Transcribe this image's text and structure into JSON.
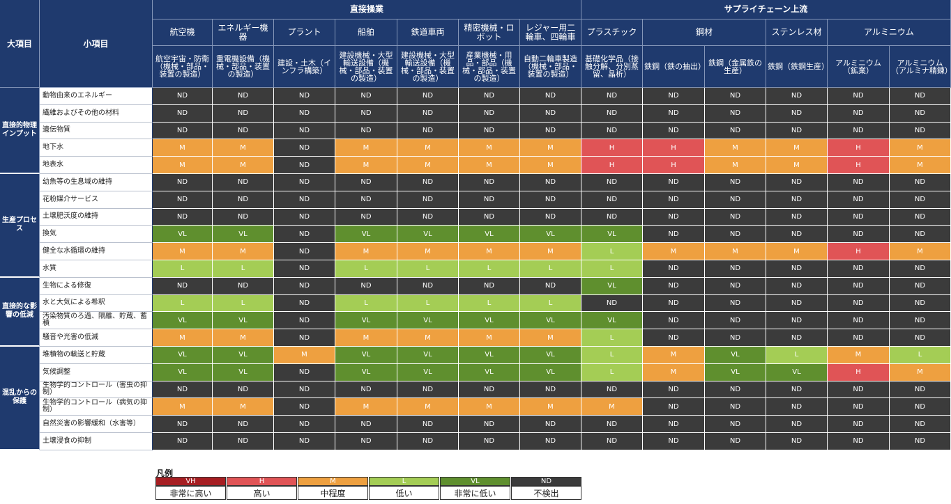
{
  "header": {
    "major_label": "大項目",
    "minor_label": "小項目",
    "groups": [
      "直接操業",
      "サプライチェーン上流"
    ]
  },
  "sectors": [
    "航空機",
    "エネルギー機器",
    "プラント",
    "船舶",
    "鉄道車両",
    "精密機械・ロボット",
    "レジャー用二輪車、四輪車",
    "プラスチック",
    "鋼材",
    "ステンレス材",
    "アルミニウム"
  ],
  "subsectors": [
    "航空宇宙・防衛（機械・部品・装置の製造）",
    "重電機設備（機械・部品・装置の製造）",
    "建設・土木（インフラ構築）",
    "建設機械・大型輸送設備（機械・部品・装置の製造）",
    "建設機械・大型輸送設備（機械・部品・装置の製造）",
    "産業機械・用品・部品（機械・部品・装置の製造）",
    "自動二輪車製造（機械・部品・装置の製造）",
    "基礎化学品（接触分解、分別蒸留、晶析）",
    "鉄鋼（鉄の抽出）",
    "鉄鋼（金属鉄の生産）",
    "鉄鋼（鉄鋼生産）",
    "アルミニウム（鉱業）",
    "アルミニウム（アルミナ精錬）"
  ],
  "categories": [
    {
      "label": "直接的物理インプット",
      "rows": 5
    },
    {
      "label": "生産プロセス",
      "rows": 6
    },
    {
      "label": "直接的な影響の低減",
      "rows": 4
    },
    {
      "label": "混乱からの保護",
      "rows": 6
    }
  ],
  "rows": [
    {
      "label": "動物由来のエネルギー",
      "values": [
        "ND",
        "ND",
        "ND",
        "ND",
        "ND",
        "ND",
        "ND",
        "ND",
        "ND",
        "ND",
        "ND",
        "ND",
        "ND"
      ]
    },
    {
      "label": "繊維およびその他の材料",
      "values": [
        "ND",
        "ND",
        "ND",
        "ND",
        "ND",
        "ND",
        "ND",
        "ND",
        "ND",
        "ND",
        "ND",
        "ND",
        "ND"
      ]
    },
    {
      "label": "遺伝物質",
      "values": [
        "ND",
        "ND",
        "ND",
        "ND",
        "ND",
        "ND",
        "ND",
        "ND",
        "ND",
        "ND",
        "ND",
        "ND",
        "ND"
      ]
    },
    {
      "label": "地下水",
      "values": [
        "M",
        "M",
        "ND",
        "M",
        "M",
        "M",
        "M",
        "H",
        "H",
        "M",
        "M",
        "H",
        "M"
      ]
    },
    {
      "label": "地表水",
      "values": [
        "M",
        "M",
        "ND",
        "M",
        "M",
        "M",
        "M",
        "H",
        "H",
        "M",
        "M",
        "H",
        "M"
      ]
    },
    {
      "label": "幼魚等の生息域の維持",
      "values": [
        "ND",
        "ND",
        "ND",
        "ND",
        "ND",
        "ND",
        "ND",
        "ND",
        "ND",
        "ND",
        "ND",
        "ND",
        "ND"
      ]
    },
    {
      "label": "花粉媒介サービス",
      "values": [
        "ND",
        "ND",
        "ND",
        "ND",
        "ND",
        "ND",
        "ND",
        "ND",
        "ND",
        "ND",
        "ND",
        "ND",
        "ND"
      ]
    },
    {
      "label": "土壌肥沃度の維持",
      "values": [
        "ND",
        "ND",
        "ND",
        "ND",
        "ND",
        "ND",
        "ND",
        "ND",
        "ND",
        "ND",
        "ND",
        "ND",
        "ND"
      ]
    },
    {
      "label": "換気",
      "values": [
        "VL",
        "VL",
        "ND",
        "VL",
        "VL",
        "VL",
        "VL",
        "VL",
        "ND",
        "ND",
        "ND",
        "ND",
        "ND"
      ]
    },
    {
      "label": "健全な水循環の維持",
      "values": [
        "M",
        "M",
        "ND",
        "M",
        "M",
        "M",
        "M",
        "L",
        "M",
        "M",
        "M",
        "H",
        "M"
      ]
    },
    {
      "label": "水質",
      "values": [
        "L",
        "L",
        "ND",
        "L",
        "L",
        "L",
        "L",
        "L",
        "ND",
        "ND",
        "ND",
        "ND",
        "ND"
      ]
    },
    {
      "label": "生物による修復",
      "values": [
        "ND",
        "ND",
        "ND",
        "ND",
        "ND",
        "ND",
        "ND",
        "VL",
        "ND",
        "ND",
        "ND",
        "ND",
        "ND"
      ]
    },
    {
      "label": "水と大気による希釈",
      "values": [
        "L",
        "L",
        "ND",
        "L",
        "L",
        "L",
        "L",
        "ND",
        "ND",
        "ND",
        "ND",
        "ND",
        "ND"
      ]
    },
    {
      "label": "汚染物質のろ過、隔離、貯蔵、蓄積",
      "values": [
        "VL",
        "VL",
        "ND",
        "VL",
        "VL",
        "VL",
        "VL",
        "VL",
        "ND",
        "ND",
        "ND",
        "ND",
        "ND"
      ]
    },
    {
      "label": "騒音や光害の低減",
      "values": [
        "M",
        "M",
        "ND",
        "M",
        "M",
        "M",
        "M",
        "L",
        "ND",
        "ND",
        "ND",
        "ND",
        "ND"
      ]
    },
    {
      "label": "堆積物の輸送と貯蔵",
      "values": [
        "VL",
        "VL",
        "M",
        "VL",
        "VL",
        "VL",
        "VL",
        "L",
        "M",
        "VL",
        "L",
        "M",
        "L"
      ]
    },
    {
      "label": "気候調整",
      "values": [
        "VL",
        "VL",
        "ND",
        "VL",
        "VL",
        "VL",
        "VL",
        "L",
        "M",
        "VL",
        "VL",
        "H",
        "M"
      ]
    },
    {
      "label": "生物学的コントロール（害虫の抑制）",
      "values": [
        "ND",
        "ND",
        "ND",
        "ND",
        "ND",
        "ND",
        "ND",
        "ND",
        "ND",
        "ND",
        "ND",
        "ND",
        "ND"
      ]
    },
    {
      "label": "生物学的コントロール（病気の抑制）",
      "values": [
        "M",
        "M",
        "ND",
        "M",
        "M",
        "M",
        "M",
        "M",
        "ND",
        "ND",
        "ND",
        "ND",
        "ND"
      ]
    },
    {
      "label": "自然災害の影響緩和（水害等）",
      "values": [
        "ND",
        "ND",
        "ND",
        "ND",
        "ND",
        "ND",
        "ND",
        "ND",
        "ND",
        "ND",
        "ND",
        "ND",
        "ND"
      ]
    },
    {
      "label": "土壌浸食の抑制",
      "values": [
        "ND",
        "ND",
        "ND",
        "ND",
        "ND",
        "ND",
        "ND",
        "ND",
        "ND",
        "ND",
        "ND",
        "ND",
        "ND"
      ]
    }
  ],
  "legend": {
    "title": "凡例",
    "items": [
      {
        "code": "VH",
        "label": "非常に高い",
        "color": "#a61e22"
      },
      {
        "code": "H",
        "label": "高い",
        "color": "#e05456"
      },
      {
        "code": "M",
        "label": "中程度",
        "color": "#eea040"
      },
      {
        "code": "L",
        "label": "低い",
        "color": "#a4cd55"
      },
      {
        "code": "VL",
        "label": "非常に低い",
        "color": "#5f8f2e"
      },
      {
        "code": "ND",
        "label": "不検出",
        "color": "#3b3b3b"
      }
    ]
  },
  "colors": {
    "header_bg": "#1f3a6e"
  }
}
